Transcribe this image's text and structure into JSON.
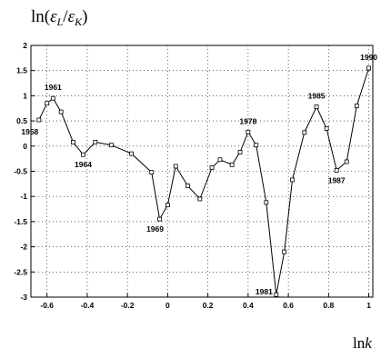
{
  "chart_data": {
    "type": "line",
    "title_math": "ln(εL/εK)",
    "title_parts": [
      "ln(",
      "ε",
      "L",
      "/",
      "ε",
      "K",
      ")"
    ],
    "xlabel_parts": [
      "ln",
      "k"
    ],
    "xlim": [
      -0.68,
      1.02
    ],
    "ylim": [
      -3,
      2
    ],
    "x_ticks": [
      -0.6,
      -0.4,
      -0.2,
      0,
      0.2,
      0.4,
      0.6,
      0.8,
      1
    ],
    "x_tick_labels": [
      "-0.6",
      "-0.4",
      "-0.2",
      "0",
      "0.2",
      "0.4",
      "0.6",
      "0.8",
      "1"
    ],
    "y_ticks": [
      2,
      1.5,
      1,
      0.5,
      0,
      -0.5,
      -1,
      -1.5,
      -2,
      -2.5,
      -3
    ],
    "y_tick_labels": [
      "2",
      "1.5",
      "1",
      "0.5",
      "0",
      "-0.5",
      "-1",
      "-1.5",
      "-2",
      "-2.5",
      "-3"
    ],
    "grid": true,
    "x": [
      -0.64,
      -0.6,
      -0.57,
      -0.53,
      -0.47,
      -0.42,
      -0.36,
      -0.28,
      -0.18,
      -0.08,
      -0.04,
      0.0,
      0.04,
      0.1,
      0.16,
      0.22,
      0.26,
      0.32,
      0.36,
      0.4,
      0.44,
      0.49,
      0.54,
      0.58,
      0.62,
      0.68,
      0.74,
      0.79,
      0.84,
      0.89,
      0.94,
      1.0
    ],
    "y": [
      0.52,
      0.85,
      0.95,
      0.68,
      0.08,
      -0.17,
      0.08,
      0.02,
      -0.15,
      -0.52,
      -1.45,
      -1.17,
      -0.4,
      -0.79,
      -1.05,
      -0.43,
      -0.27,
      -0.37,
      -0.12,
      0.28,
      0.02,
      -1.12,
      -2.95,
      -2.1,
      -0.67,
      0.27,
      0.78,
      0.35,
      -0.48,
      -0.31,
      0.8,
      1.55
    ],
    "annotations": [
      {
        "text": "1958",
        "x": -0.64,
        "y": 0.52
      },
      {
        "text": "1961",
        "x": -0.57,
        "y": 0.95
      },
      {
        "text": "1964",
        "x": -0.42,
        "y": -0.17
      },
      {
        "text": "1969",
        "x": -0.04,
        "y": -1.45
      },
      {
        "text": "1978",
        "x": 0.4,
        "y": 0.28
      },
      {
        "text": "1981",
        "x": 0.54,
        "y": -2.95
      },
      {
        "text": "1985",
        "x": 0.74,
        "y": 0.78
      },
      {
        "text": "1987",
        "x": 0.84,
        "y": -0.48
      },
      {
        "text": "1990",
        "x": 1.0,
        "y": 1.55
      }
    ]
  }
}
